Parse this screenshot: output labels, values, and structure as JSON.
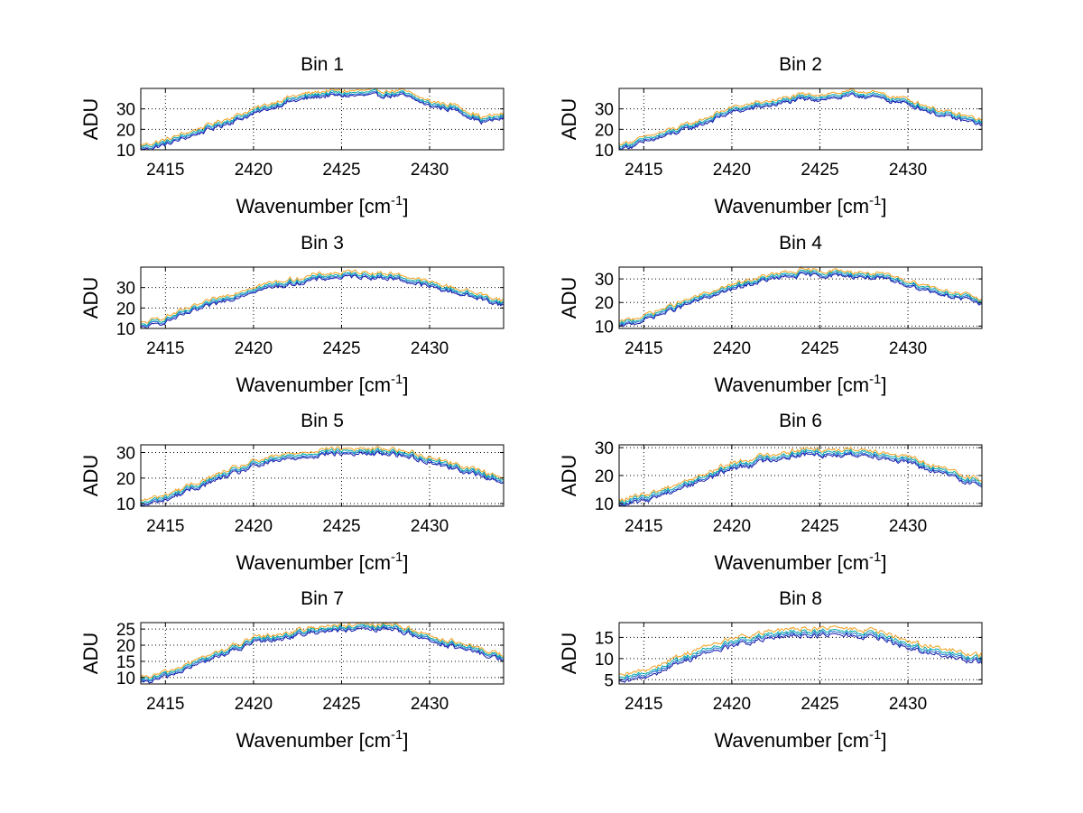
{
  "figure": {
    "background": "#ffffff",
    "series_colors": [
      "#1f6fd0",
      "#00a8a8",
      "#f0a020",
      "#1a1aa8"
    ]
  },
  "chart_data": [
    {
      "type": "line",
      "title": "Bin 1",
      "xlabel": "Wavenumber [cm",
      "xlabel_sup": "-1",
      "xlabel_end": "]",
      "ylabel": "ADU",
      "xlim": [
        2413.6,
        2434.2
      ],
      "ylim": [
        10,
        40
      ],
      "xticks": [
        2415,
        2420,
        2425,
        2430
      ],
      "yticks": [
        10,
        20,
        30
      ],
      "grid": true,
      "profile": {
        "x": [
          2413.6,
          2415,
          2418,
          2420,
          2422,
          2424,
          2426,
          2428.5,
          2430,
          2431.5,
          2433,
          2434.2
        ],
        "y": [
          10.5,
          13,
          22,
          28,
          34,
          37,
          37,
          37,
          32,
          30,
          24,
          26
        ]
      },
      "series_offsets": [
        0,
        0.8,
        1.8,
        -0.7
      ],
      "noise": 0.8
    },
    {
      "type": "line",
      "title": "Bin 2",
      "xlabel": "Wavenumber [cm",
      "xlabel_sup": "-1",
      "xlabel_end": "]",
      "ylabel": "ADU",
      "xlim": [
        2413.6,
        2434.2
      ],
      "ylim": [
        10,
        40
      ],
      "xticks": [
        2415,
        2420,
        2425,
        2430
      ],
      "yticks": [
        10,
        20,
        30
      ],
      "grid": true,
      "profile": {
        "x": [
          2413.6,
          2415,
          2418,
          2420,
          2422,
          2424,
          2426,
          2427.5,
          2430,
          2432,
          2434.2
        ],
        "y": [
          11,
          14,
          22,
          29,
          32,
          35,
          36,
          37,
          33,
          27,
          23
        ]
      },
      "series_offsets": [
        0,
        0.8,
        1.8,
        -0.7
      ],
      "noise": 0.8
    },
    {
      "type": "line",
      "title": "Bin 3",
      "xlabel": "Wavenumber [cm",
      "xlabel_sup": "-1",
      "xlabel_end": "]",
      "ylabel": "ADU",
      "xlim": [
        2413.6,
        2434.2
      ],
      "ylim": [
        10,
        40
      ],
      "xticks": [
        2415,
        2420,
        2425,
        2430
      ],
      "yticks": [
        10,
        20,
        30
      ],
      "grid": true,
      "profile": {
        "x": [
          2413.6,
          2415,
          2418,
          2420,
          2422,
          2424,
          2426,
          2428,
          2430,
          2432,
          2434.2
        ],
        "y": [
          10.5,
          14,
          23,
          29,
          32,
          35,
          36,
          35,
          31,
          27,
          22
        ]
      },
      "series_offsets": [
        0,
        0.8,
        1.8,
        -0.7
      ],
      "noise": 0.8
    },
    {
      "type": "line",
      "title": "Bin 4",
      "xlabel": "Wavenumber [cm",
      "xlabel_sup": "-1",
      "xlabel_end": "]",
      "ylabel": "ADU",
      "xlim": [
        2413.6,
        2434.2
      ],
      "ylim": [
        9,
        35
      ],
      "xticks": [
        2415,
        2420,
        2425,
        2430
      ],
      "yticks": [
        10,
        20,
        30
      ],
      "grid": true,
      "profile": {
        "x": [
          2413.6,
          2415,
          2418,
          2420,
          2422,
          2424,
          2426,
          2428,
          2430,
          2432,
          2434.2
        ],
        "y": [
          10,
          13,
          21,
          26,
          30,
          32,
          32,
          31,
          28,
          24,
          20
        ]
      },
      "series_offsets": [
        0,
        0.7,
        1.5,
        -0.6
      ],
      "noise": 0.7
    },
    {
      "type": "line",
      "title": "Bin 5",
      "xlabel": "Wavenumber [cm",
      "xlabel_sup": "-1",
      "xlabel_end": "]",
      "ylabel": "ADU",
      "xlim": [
        2413.6,
        2434.2
      ],
      "ylim": [
        9,
        33
      ],
      "xticks": [
        2415,
        2420,
        2425,
        2430
      ],
      "yticks": [
        10,
        20,
        30
      ],
      "grid": true,
      "profile": {
        "x": [
          2413.6,
          2415,
          2418,
          2420,
          2422,
          2424,
          2426,
          2428,
          2430,
          2432,
          2434.2
        ],
        "y": [
          9.5,
          12,
          20,
          25,
          28,
          30,
          30,
          30,
          27,
          23,
          19
        ]
      },
      "series_offsets": [
        0,
        0.7,
        1.5,
        -0.6
      ],
      "noise": 0.7
    },
    {
      "type": "line",
      "title": "Bin 6",
      "xlabel": "Wavenumber [cm",
      "xlabel_sup": "-1",
      "xlabel_end": "]",
      "ylabel": "ADU",
      "xlim": [
        2413.6,
        2434.2
      ],
      "ylim": [
        9,
        31
      ],
      "xticks": [
        2415,
        2420,
        2425,
        2430
      ],
      "yticks": [
        10,
        20,
        30
      ],
      "grid": true,
      "profile": {
        "x": [
          2413.6,
          2415,
          2418,
          2420,
          2422,
          2424,
          2426,
          2428,
          2430,
          2432,
          2434.2
        ],
        "y": [
          9.5,
          11.5,
          18,
          23,
          26,
          28,
          28,
          28,
          25,
          21,
          17
        ]
      },
      "series_offsets": [
        0,
        0.7,
        1.5,
        -0.6
      ],
      "noise": 0.7
    },
    {
      "type": "line",
      "title": "Bin 7",
      "xlabel": "Wavenumber [cm",
      "xlabel_sup": "-1",
      "xlabel_end": "]",
      "ylabel": "ADU",
      "xlim": [
        2413.6,
        2434.2
      ],
      "ylim": [
        8,
        27
      ],
      "xticks": [
        2415,
        2420,
        2425,
        2430
      ],
      "yticks": [
        10,
        15,
        20,
        25
      ],
      "grid": true,
      "profile": {
        "x": [
          2413.6,
          2415,
          2418,
          2420,
          2422,
          2424,
          2426,
          2428,
          2430,
          2432,
          2434.2
        ],
        "y": [
          8.5,
          10.5,
          17,
          21,
          23,
          25,
          25,
          25.5,
          22,
          19,
          16
        ]
      },
      "series_offsets": [
        0,
        0.5,
        1.1,
        -0.5
      ],
      "noise": 0.55
    },
    {
      "type": "line",
      "title": "Bin 8",
      "xlabel": "Wavenumber [cm",
      "xlabel_sup": "-1",
      "xlabel_end": "]",
      "ylabel": "ADU",
      "xlim": [
        2413.6,
        2434.2
      ],
      "ylim": [
        4,
        18.5
      ],
      "xticks": [
        2415,
        2420,
        2425,
        2430
      ],
      "yticks": [
        5,
        10,
        15
      ],
      "grid": true,
      "profile": {
        "x": [
          2413.6,
          2415,
          2418,
          2420,
          2422,
          2424,
          2426,
          2428,
          2430,
          2432,
          2434.2
        ],
        "y": [
          4.5,
          6,
          11,
          13.5,
          15,
          16,
          16,
          15.5,
          13,
          11,
          9.5
        ]
      },
      "series_offsets": [
        0,
        0.5,
        1.2,
        -0.5
      ],
      "noise": 0.45
    }
  ]
}
